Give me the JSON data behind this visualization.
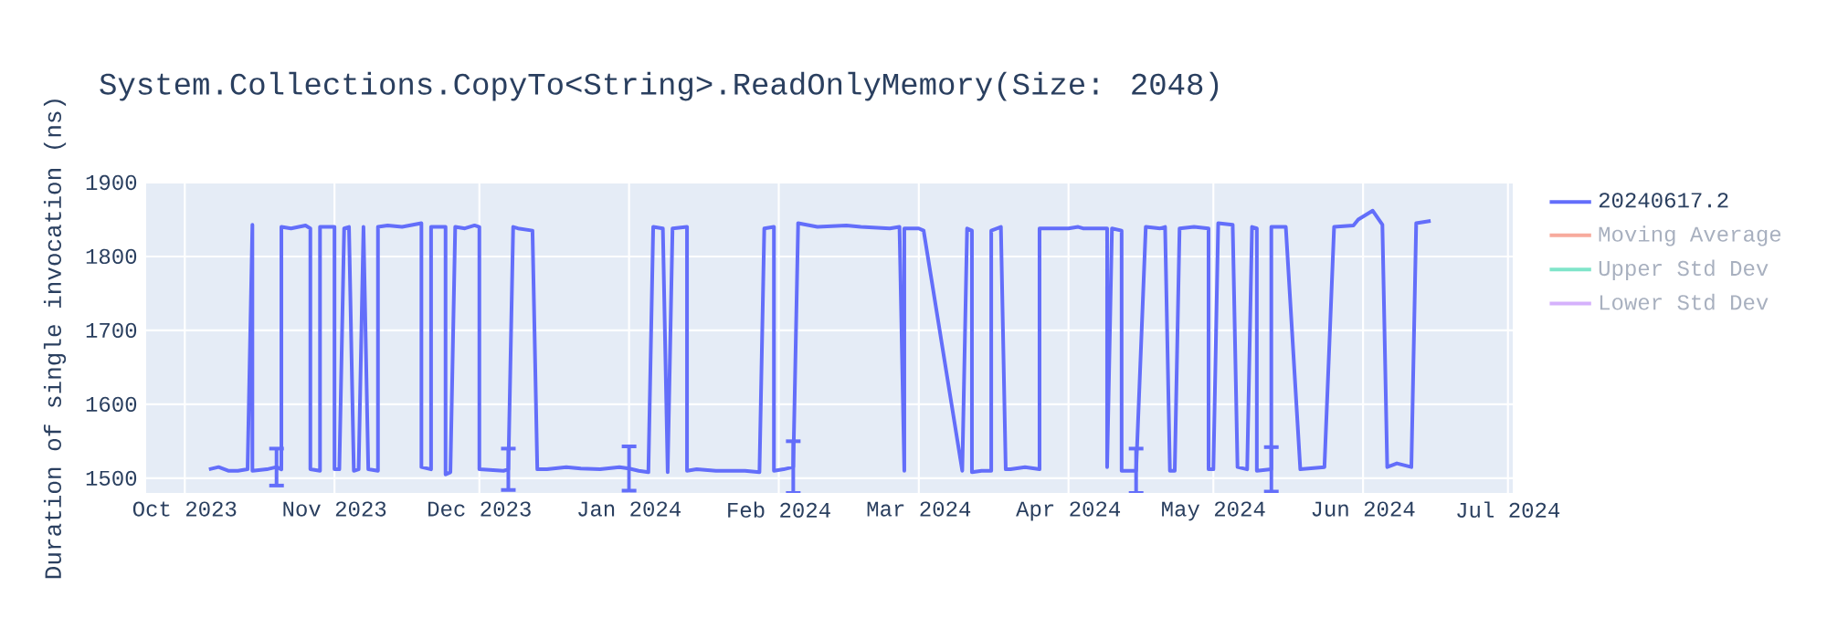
{
  "chart_data": {
    "type": "line",
    "title": "System.Collections.CopyTo<String>.ReadOnlyMemory(Size: 2048)",
    "ylabel": "Duration of single invocation (ns)",
    "x": [
      "2023-10-06",
      "2023-10-08",
      "2023-10-10",
      "2023-10-12",
      "2023-10-14",
      "2023-10-15",
      "2023-10-15",
      "2023-10-18",
      "2023-10-20",
      "2023-10-21",
      "2023-10-21",
      "2023-10-23",
      "2023-10-26",
      "2023-10-27",
      "2023-10-27",
      "2023-10-29",
      "2023-10-29",
      "2023-11-01",
      "2023-11-01",
      "2023-11-02",
      "2023-11-03",
      "2023-11-04",
      "2023-11-05",
      "2023-11-06",
      "2023-11-07",
      "2023-11-07",
      "2023-11-08",
      "2023-11-10",
      "2023-11-10",
      "2023-11-12",
      "2023-11-15",
      "2023-11-19",
      "2023-11-19",
      "2023-11-21",
      "2023-11-21",
      "2023-11-24",
      "2023-11-24",
      "2023-11-25",
      "2023-11-26",
      "2023-11-28",
      "2023-11-30",
      "2023-12-01",
      "2023-12-01",
      "2023-12-06",
      "2023-12-07",
      "2023-12-08",
      "2023-12-09",
      "2023-12-12",
      "2023-12-13",
      "2023-12-15",
      "2023-12-19",
      "2023-12-22",
      "2023-12-26",
      "2023-12-30",
      "2024-01-01",
      "2024-01-03",
      "2024-01-05",
      "2024-01-06",
      "2024-01-08",
      "2024-01-09",
      "2024-01-09",
      "2024-01-10",
      "2024-01-13",
      "2024-01-13",
      "2024-01-15",
      "2024-01-15",
      "2024-01-19",
      "2024-01-25",
      "2024-01-28",
      "2024-01-29",
      "2024-01-31",
      "2024-01-31",
      "2024-02-02",
      "2024-02-04",
      "2024-02-05",
      "2024-02-05",
      "2024-02-09",
      "2024-02-15",
      "2024-02-18",
      "2024-02-24",
      "2024-02-26",
      "2024-02-27",
      "2024-02-27",
      "2024-03-01",
      "2024-03-02",
      "2024-03-10",
      "2024-03-11",
      "2024-03-12",
      "2024-03-12",
      "2024-03-14",
      "2024-03-16",
      "2024-03-16",
      "2024-03-18",
      "2024-03-19",
      "2024-03-20",
      "2024-03-23",
      "2024-03-26",
      "2024-03-26",
      "2024-03-29",
      "2024-04-01",
      "2024-04-03",
      "2024-04-04",
      "2024-04-09",
      "2024-04-09",
      "2024-04-10",
      "2024-04-12",
      "2024-04-12",
      "2024-04-15",
      "2024-04-17",
      "2024-04-20",
      "2024-04-21",
      "2024-04-22",
      "2024-04-23",
      "2024-04-24",
      "2024-04-27",
      "2024-04-30",
      "2024-04-30",
      "2024-05-01",
      "2024-05-02",
      "2024-05-05",
      "2024-05-06",
      "2024-05-08",
      "2024-05-09",
      "2024-05-10",
      "2024-05-10",
      "2024-05-13",
      "2024-05-13",
      "2024-05-16",
      "2024-05-19",
      "2024-05-24",
      "2024-05-26",
      "2024-05-30",
      "2024-05-31",
      "2024-06-03",
      "2024-06-05",
      "2024-06-06",
      "2024-06-08",
      "2024-06-11",
      "2024-06-12",
      "2024-06-15"
    ],
    "series": [
      {
        "name": "20240617.2",
        "color": "#636efa",
        "values": [
          1512,
          1515,
          1510,
          1510,
          1512,
          1843,
          1510,
          1512,
          1515,
          1512,
          1840,
          1838,
          1842,
          1838,
          1512,
          1510,
          1840,
          1840,
          1512,
          1512,
          1838,
          1840,
          1510,
          1512,
          1838,
          1840,
          1512,
          1510,
          1840,
          1842,
          1840,
          1845,
          1515,
          1512,
          1840,
          1840,
          1505,
          1508,
          1840,
          1838,
          1842,
          1840,
          1512,
          1510,
          1512,
          1840,
          1838,
          1835,
          1512,
          1512,
          1515,
          1513,
          1512,
          1515,
          1513,
          1510,
          1508,
          1840,
          1838,
          1508,
          1510,
          1838,
          1840,
          1510,
          1512,
          1512,
          1510,
          1510,
          1508,
          1838,
          1840,
          1510,
          1512,
          1515,
          1840,
          1845,
          1840,
          1842,
          1840,
          1838,
          1840,
          1510,
          1838,
          1838,
          1835,
          1510,
          1838,
          1835,
          1508,
          1510,
          1510,
          1835,
          1840,
          1512,
          1512,
          1515,
          1512,
          1838,
          1838,
          1838,
          1840,
          1838,
          1838,
          1515,
          1838,
          1835,
          1510,
          1510,
          1840,
          1838,
          1840,
          1510,
          1510,
          1838,
          1840,
          1838,
          1512,
          1512,
          1845,
          1843,
          1515,
          1512,
          1840,
          1838,
          1510,
          1512,
          1840,
          1840,
          1512,
          1515,
          1840,
          1842,
          1850,
          1862,
          1843,
          1515,
          1520,
          1515,
          1845,
          1848
        ],
        "errors": [
          null,
          null,
          null,
          null,
          null,
          null,
          null,
          null,
          25,
          null,
          null,
          null,
          null,
          null,
          null,
          null,
          null,
          null,
          null,
          null,
          null,
          null,
          null,
          null,
          null,
          null,
          null,
          null,
          null,
          null,
          null,
          null,
          null,
          null,
          null,
          null,
          null,
          null,
          null,
          null,
          null,
          null,
          null,
          null,
          28,
          null,
          null,
          null,
          null,
          null,
          null,
          null,
          null,
          null,
          30,
          null,
          null,
          null,
          null,
          null,
          null,
          null,
          null,
          null,
          null,
          null,
          null,
          null,
          null,
          null,
          null,
          null,
          null,
          35,
          null,
          null,
          null,
          null,
          null,
          null,
          null,
          null,
          null,
          null,
          null,
          null,
          null,
          null,
          null,
          null,
          null,
          null,
          null,
          null,
          null,
          null,
          null,
          null,
          null,
          null,
          null,
          null,
          null,
          null,
          null,
          null,
          null,
          30,
          null,
          null,
          null,
          null,
          null,
          null,
          null,
          null,
          null,
          null,
          null,
          null,
          null,
          null,
          null,
          null,
          null,
          30,
          null,
          null,
          null,
          null,
          null,
          null,
          null,
          null,
          null,
          null,
          null,
          null,
          null,
          null
        ]
      },
      {
        "name": "Moving Average",
        "color": "#f7aa9d",
        "values": [
          null,
          null,
          null,
          null,
          null,
          null,
          null,
          null,
          null,
          null,
          null,
          null,
          null,
          null,
          null,
          null,
          null,
          null,
          null,
          null,
          null,
          null,
          null,
          null,
          null,
          null,
          null,
          null,
          null,
          null,
          null,
          null,
          null,
          null,
          null,
          null,
          null,
          null,
          null,
          null,
          null,
          null,
          null,
          null,
          null,
          null,
          null,
          null,
          null,
          null,
          null,
          null,
          null,
          null,
          null,
          null,
          null,
          null,
          null,
          null,
          null,
          null,
          null,
          null,
          null,
          null,
          null,
          null,
          null,
          null,
          null,
          null,
          null,
          null,
          null,
          null,
          null,
          null,
          null,
          null,
          null,
          null,
          null,
          null,
          null,
          null,
          null,
          null,
          null,
          null,
          null,
          null,
          null,
          null,
          null,
          null,
          null,
          null,
          null,
          null,
          null,
          null,
          null,
          null,
          null,
          null,
          null,
          null,
          null,
          null,
          null,
          null,
          null,
          null,
          null,
          null,
          null,
          null,
          null,
          null,
          null,
          null,
          null,
          null,
          null,
          null,
          null,
          null,
          null,
          null,
          null,
          null,
          null,
          null,
          null,
          null,
          null,
          null,
          null,
          null
        ]
      },
      {
        "name": "Upper Std Dev",
        "color": "#80e5ca",
        "values": [
          null,
          null,
          null,
          null,
          null,
          null,
          null,
          null,
          null,
          null,
          null,
          null,
          null,
          null,
          null,
          null,
          null,
          null,
          null,
          null,
          null,
          null,
          null,
          null,
          null,
          null,
          null,
          null,
          null,
          null,
          null,
          null,
          null,
          null,
          null,
          null,
          null,
          null,
          null,
          null,
          null,
          null,
          null,
          null,
          null,
          null,
          null,
          null,
          null,
          null,
          null,
          null,
          null,
          null,
          null,
          null,
          null,
          null,
          null,
          null,
          null,
          null,
          null,
          null,
          null,
          null,
          null,
          null,
          null,
          null,
          null,
          null,
          null,
          null,
          null,
          null,
          null,
          null,
          null,
          null,
          null,
          null,
          null,
          null,
          null,
          null,
          null,
          null,
          null,
          null,
          null,
          null,
          null,
          null,
          null,
          null,
          null,
          null,
          null,
          null,
          null,
          null,
          null,
          null,
          null,
          null,
          null,
          null,
          null,
          null,
          null,
          null,
          null,
          null,
          null,
          null,
          null,
          null,
          null,
          null,
          null,
          null,
          null,
          null,
          null,
          null,
          null,
          null,
          null,
          null,
          null,
          null,
          null,
          null,
          null,
          null,
          null,
          null,
          null,
          null
        ]
      },
      {
        "name": "Lower Std Dev",
        "color": "#d5b1fc",
        "values": [
          null,
          null,
          null,
          null,
          null,
          null,
          null,
          null,
          null,
          null,
          null,
          null,
          null,
          null,
          null,
          null,
          null,
          null,
          null,
          null,
          null,
          null,
          null,
          null,
          null,
          null,
          null,
          null,
          null,
          null,
          null,
          null,
          null,
          null,
          null,
          null,
          null,
          null,
          null,
          null,
          null,
          null,
          null,
          null,
          null,
          null,
          null,
          null,
          null,
          null,
          null,
          null,
          null,
          null,
          null,
          null,
          null,
          null,
          null,
          null,
          null,
          null,
          null,
          null,
          null,
          null,
          null,
          null,
          null,
          null,
          null,
          null,
          null,
          null,
          null,
          null,
          null,
          null,
          null,
          null,
          null,
          null,
          null,
          null,
          null,
          null,
          null,
          null,
          null,
          null,
          null,
          null,
          null,
          null,
          null,
          null,
          null,
          null,
          null,
          null,
          null,
          null,
          null,
          null,
          null,
          null,
          null,
          null,
          null,
          null,
          null,
          null,
          null,
          null,
          null,
          null,
          null,
          null,
          null,
          null,
          null,
          null,
          null,
          null,
          null,
          null,
          null,
          null,
          null,
          null,
          null,
          null,
          null,
          null,
          null,
          null,
          null,
          null,
          null,
          null
        ]
      }
    ],
    "xlim": [
      "2023-09-23",
      "2024-07-02"
    ],
    "xticks": [
      {
        "value": "2023-10-01",
        "label": "Oct 2023"
      },
      {
        "value": "2023-11-01",
        "label": "Nov 2023"
      },
      {
        "value": "2023-12-01",
        "label": "Dec 2023"
      },
      {
        "value": "2024-01-01",
        "label": "Jan 2024"
      },
      {
        "value": "2024-02-01",
        "label": "Feb 2024"
      },
      {
        "value": "2024-03-01",
        "label": "Mar 2024"
      },
      {
        "value": "2024-04-01",
        "label": "Apr 2024"
      },
      {
        "value": "2024-05-01",
        "label": "May 2024"
      },
      {
        "value": "2024-06-01",
        "label": "Jun 2024"
      },
      {
        "value": "2024-07-01",
        "label": "Jul 2024"
      }
    ],
    "ylim": [
      1480,
      1900
    ],
    "yticks": [
      1500,
      1600,
      1700,
      1800,
      1900
    ],
    "grid": true,
    "legend": "top right",
    "marker": "none",
    "line_style": "solid"
  }
}
